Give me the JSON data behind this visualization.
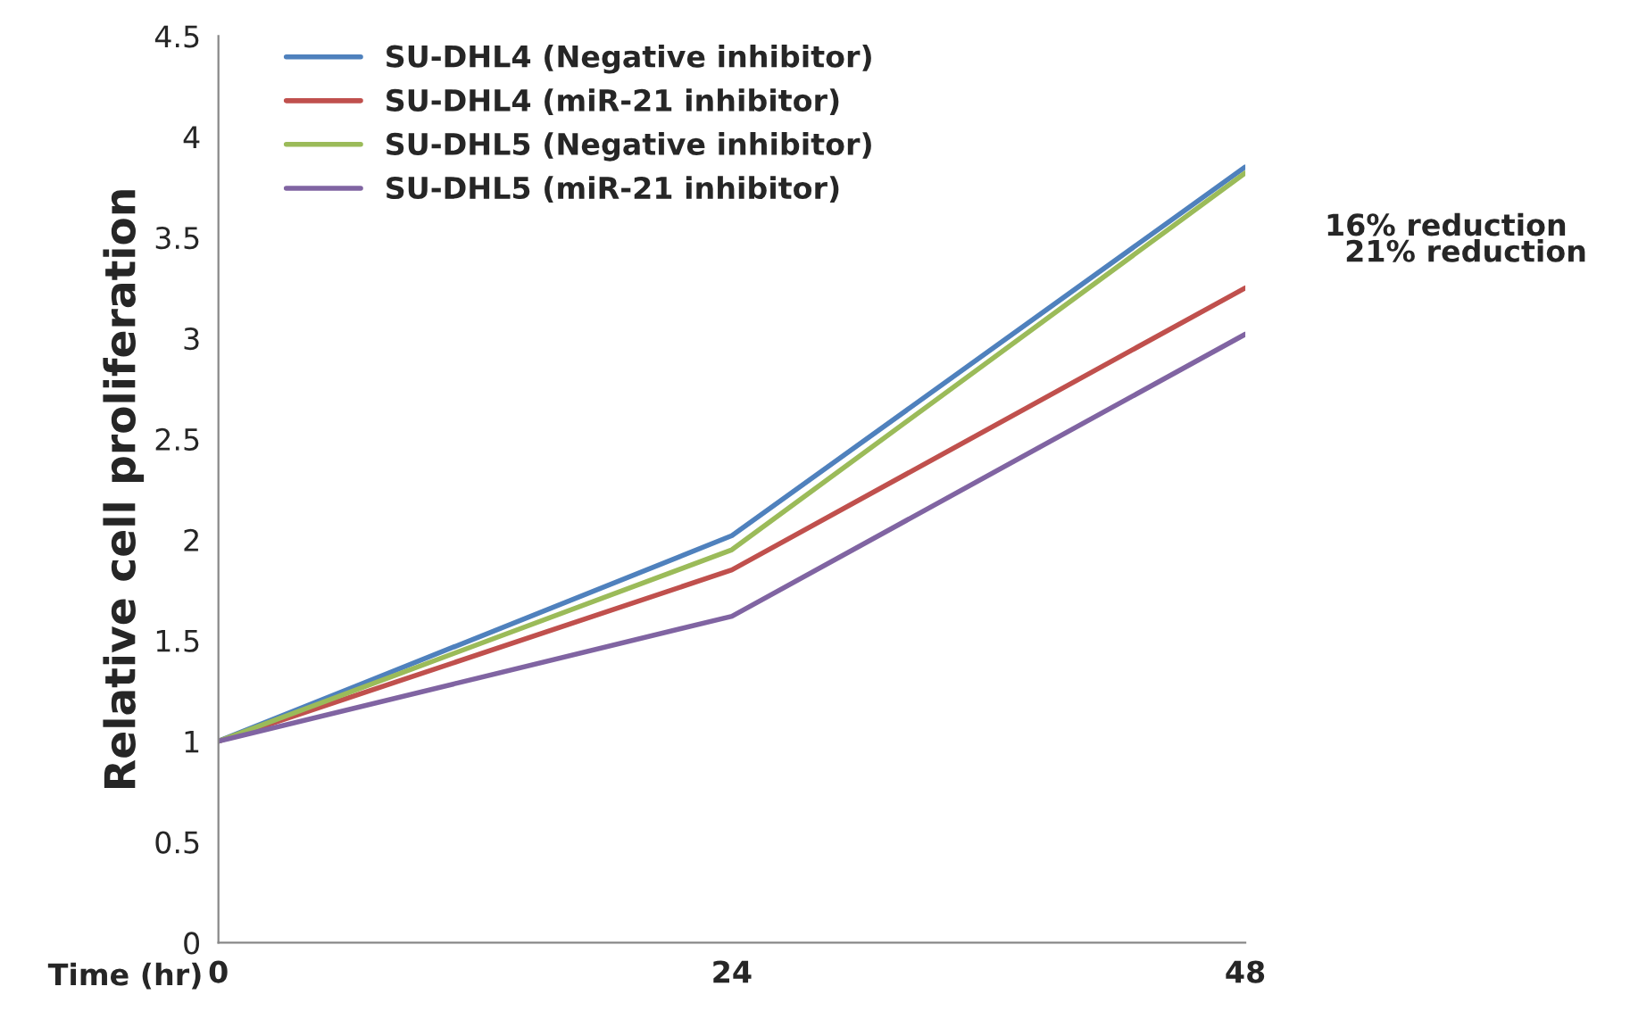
{
  "chart_data": {
    "type": "line",
    "ylabel": "Relative cell proliferation",
    "xlabel": "Time (hr)",
    "x": [
      0,
      24,
      48
    ],
    "xlim": [
      0,
      48
    ],
    "xticks": [
      0,
      24,
      48
    ],
    "ylim": [
      0,
      4.5
    ],
    "yticks": [
      0,
      0.5,
      1,
      1.5,
      2,
      2.5,
      3,
      3.5,
      4,
      4.5
    ],
    "series": [
      {
        "name": "SU-DHL4 (Negative inhibitor)",
        "color": "#4f81bd",
        "values": [
          1,
          2.02,
          3.85
        ]
      },
      {
        "name": "SU-DHL4 (miR-21 inhibitor)",
        "color": "#c0504d",
        "values": [
          1,
          1.85,
          3.25
        ]
      },
      {
        "name": "SU-DHL5 (Negative inhibitor)",
        "color": "#9bbb59",
        "values": [
          1,
          1.95,
          3.82
        ]
      },
      {
        "name": "SU-DHL5 (miR-21 inhibitor)",
        "color": "#8064a2",
        "values": [
          1,
          1.62,
          3.02
        ]
      }
    ],
    "annotations": [
      "16% reduction",
      "21% reduction"
    ],
    "legend": "top left",
    "grid": false
  }
}
